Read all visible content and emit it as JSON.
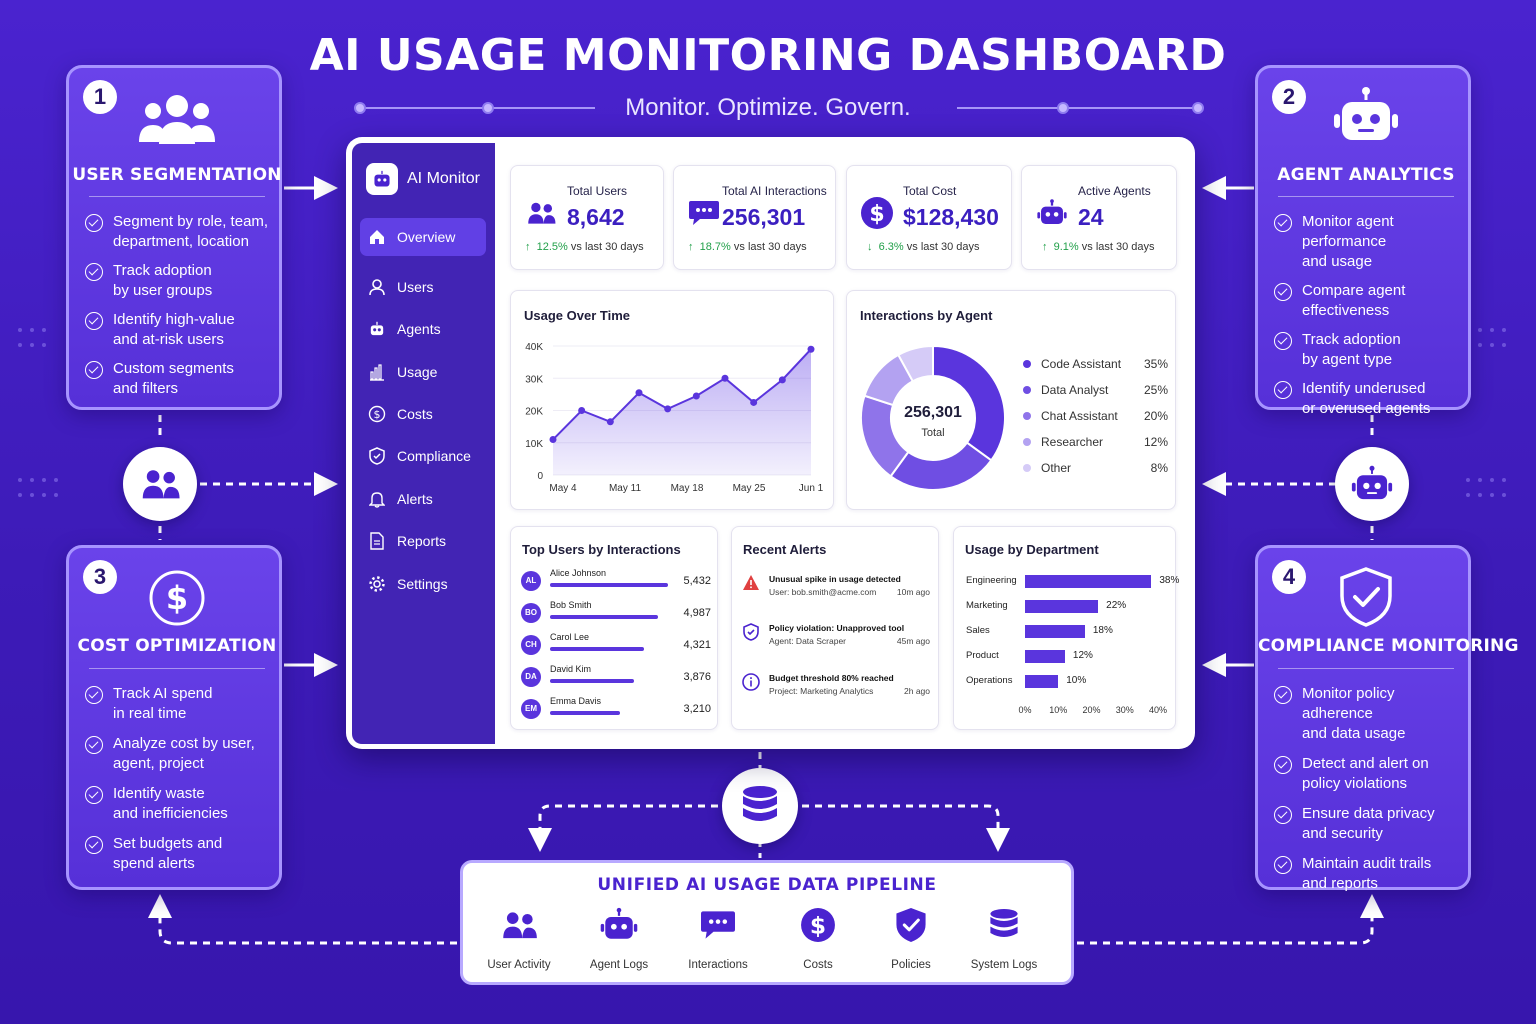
{
  "header": {
    "title": "AI USAGE MONITORING DASHBOARD",
    "subtitle": "Monitor. Optimize. Govern."
  },
  "features": [
    {
      "number": "1",
      "title": "USER SEGMENTATION",
      "icon": "users-icon",
      "items": [
        "Segment by role, team,\ndepartment, location",
        "Track adoption\nby user groups",
        "Identify high-value\nand at-risk users",
        "Custom segments\nand filters"
      ]
    },
    {
      "number": "2",
      "title": "AGENT ANALYTICS",
      "icon": "robot-icon",
      "items": [
        "Monitor agent performance\nand usage",
        "Compare agent\neffectiveness",
        "Track adoption\nby agent type",
        "Identify underused\nor overused agents"
      ]
    },
    {
      "number": "3",
      "title": "COST OPTIMIZATION",
      "icon": "dollar-icon",
      "items": [
        "Track AI spend\nin real time",
        "Analyze cost by user,\nagent, project",
        "Identify waste\nand inefficiencies",
        "Set budgets and\nspend alerts"
      ]
    },
    {
      "number": "4",
      "title": "COMPLIANCE MONITORING",
      "icon": "shield-check-icon",
      "items": [
        "Monitor policy adherence\nand data usage",
        "Detect and alert on\npolicy violations",
        "Ensure data privacy\nand security",
        "Maintain audit trails\nand reports"
      ]
    }
  ],
  "app": {
    "brand": "AI Monitor",
    "nav": [
      {
        "label": "Overview",
        "icon": "home-icon",
        "active": true
      },
      {
        "label": "Users",
        "icon": "user-icon"
      },
      {
        "label": "Agents",
        "icon": "robot-icon"
      },
      {
        "label": "Usage",
        "icon": "bar-chart-icon"
      },
      {
        "label": "Costs",
        "icon": "dollar-icon"
      },
      {
        "label": "Compliance",
        "icon": "shield-icon"
      },
      {
        "label": "Alerts",
        "icon": "bell-icon"
      },
      {
        "label": "Reports",
        "icon": "document-icon"
      },
      {
        "label": "Settings",
        "icon": "gear-icon"
      }
    ],
    "kpis": [
      {
        "label": "Total Users",
        "value": "8,642",
        "delta": "12.5%",
        "direction": "up",
        "compare": "vs last 30 days",
        "icon": "users-icon"
      },
      {
        "label": "Total AI Interactions",
        "value": "256,301",
        "delta": "18.7%",
        "direction": "up",
        "compare": "vs last 30 days",
        "icon": "chat-icon"
      },
      {
        "label": "Total Cost",
        "value": "$128,430",
        "delta": "6.3%",
        "direction": "down",
        "compare": "vs last 30 days",
        "icon": "dollar-icon"
      },
      {
        "label": "Active Agents",
        "value": "24",
        "delta": "9.1%",
        "direction": "up",
        "compare": "vs last 30 days",
        "icon": "robot-icon"
      }
    ],
    "usage_title": "Usage Over Time",
    "agent_title": "Interactions by Agent",
    "donut_total": "256,301",
    "donut_total_label": "Total",
    "top_users_title": "Top Users by Interactions",
    "top_users": [
      {
        "initials": "AL",
        "name": "Alice Johnson",
        "value": "5,432",
        "count": 5432
      },
      {
        "initials": "BO",
        "name": "Bob Smith",
        "value": "4,987",
        "count": 4987
      },
      {
        "initials": "CH",
        "name": "Carol Lee",
        "value": "4,321",
        "count": 4321
      },
      {
        "initials": "DA",
        "name": "David Kim",
        "value": "3,876",
        "count": 3876
      },
      {
        "initials": "EM",
        "name": "Emma Davis",
        "value": "3,210",
        "count": 3210
      }
    ],
    "alerts_title": "Recent Alerts",
    "alerts": [
      {
        "icon": "warning-icon",
        "title": "Unusual spike in usage detected",
        "detail": "User: bob.smith@acme.com",
        "time": "10m ago",
        "color": "#e04040"
      },
      {
        "icon": "shield-icon",
        "title": "Policy violation: Unapproved tool",
        "detail": "Agent: Data Scraper",
        "time": "45m ago",
        "color": "#4a23cf"
      },
      {
        "icon": "info-icon",
        "title": "Budget threshold 80% reached",
        "detail": "Project: Marketing Analytics",
        "time": "2h ago",
        "color": "#4a23cf"
      }
    ],
    "dept_title": "Usage by Department"
  },
  "pipeline": {
    "title": "UNIFIED AI USAGE DATA PIPELINE",
    "items": [
      {
        "label": "User Activity",
        "icon": "users-icon"
      },
      {
        "label": "Agent Logs",
        "icon": "robot-icon"
      },
      {
        "label": "Interactions",
        "icon": "chat-icon"
      },
      {
        "label": "Costs",
        "icon": "dollar-icon"
      },
      {
        "label": "Policies",
        "icon": "shield-check-icon"
      },
      {
        "label": "System Logs",
        "icon": "database-icon"
      }
    ]
  },
  "colors": {
    "primary": "#4a23cf",
    "accent": "#5a35dd",
    "positive": "#22a04a",
    "alert": "#e04040"
  },
  "chart_data": [
    {
      "type": "area",
      "title": "Usage Over Time",
      "x_ticks": [
        "May 4",
        "May 11",
        "May 18",
        "May 25",
        "Jun 1"
      ],
      "y_ticks": [
        "0",
        "10K",
        "20K",
        "30K",
        "40K"
      ],
      "ylim": [
        0,
        40000
      ],
      "x": [
        0,
        2,
        4,
        6,
        8,
        10,
        12,
        14,
        16,
        18
      ],
      "x_domain": [
        0,
        18
      ],
      "values": [
        11000,
        20000,
        16500,
        25500,
        20500,
        24500,
        30000,
        22500,
        29500,
        39000
      ]
    },
    {
      "type": "pie",
      "title": "Interactions by Agent",
      "series": [
        {
          "name": "Code Assistant",
          "value": 35,
          "label": "35%",
          "color": "#5a35dd"
        },
        {
          "name": "Data Analyst",
          "value": 25,
          "label": "25%",
          "color": "#6f4ee3"
        },
        {
          "name": "Chat Assistant",
          "value": 20,
          "label": "20%",
          "color": "#8f74ea"
        },
        {
          "name": "Researcher",
          "value": 12,
          "label": "12%",
          "color": "#b3a2f1"
        },
        {
          "name": "Other",
          "value": 8,
          "label": "8%",
          "color": "#d5cbf7"
        }
      ]
    },
    {
      "type": "bar",
      "title": "Usage by Department",
      "categories": [
        "Engineering",
        "Marketing",
        "Sales",
        "Product",
        "Operations"
      ],
      "values": [
        38,
        22,
        18,
        12,
        10
      ],
      "labels": [
        "38%",
        "22%",
        "18%",
        "12%",
        "10%"
      ],
      "x_ticks": [
        "0%",
        "10%",
        "20%",
        "30%",
        "40%"
      ],
      "xlim": [
        0,
        40
      ]
    }
  ]
}
